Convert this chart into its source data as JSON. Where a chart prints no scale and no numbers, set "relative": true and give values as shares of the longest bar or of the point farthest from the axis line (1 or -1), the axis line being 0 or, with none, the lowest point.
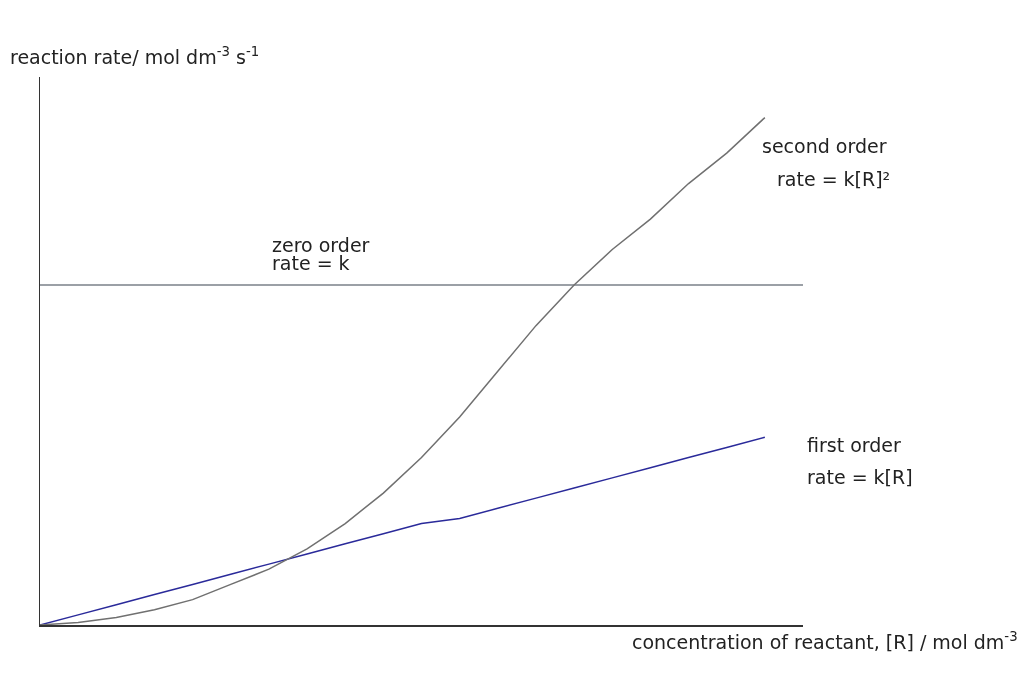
{
  "chart_data": {
    "type": "line",
    "relative": true,
    "xlabel": "concentration of reactant, [R] / mol dm$^{-3}$",
    "ylabel": "reaction rate/ mol dm$^{-3}$ s$^{-1}$",
    "categories": [
      null,
      null,
      null,
      null,
      null,
      null,
      null,
      null,
      null,
      null,
      null,
      null,
      null,
      null,
      null,
      null,
      null,
      null,
      null,
      null,
      null
    ],
    "series": [
      {
        "name": "zero order",
        "color": "#7a8088",
        "values": [
          0.67,
          0.67,
          0.67,
          0.67,
          0.67,
          0.67,
          0.67,
          0.67,
          0.67,
          0.67,
          0.67,
          0.67,
          0.67,
          0.67,
          0.67,
          0.67,
          0.67,
          0.67,
          0.67,
          0.67,
          0.67
        ]
      },
      {
        "name": "first order",
        "color": "#2a2a9a",
        "values": [
          0,
          0.02,
          0.04,
          0.06,
          0.08,
          0.1,
          0.12,
          0.14,
          0.16,
          0.18,
          0.2,
          0.21,
          0.23,
          0.25,
          0.27,
          0.29,
          0.31,
          0.33,
          0.35,
          0.37,
          null
        ]
      },
      {
        "name": "second order",
        "color": "#707070",
        "values": [
          0,
          0.005,
          0.015,
          0.03,
          0.05,
          0.08,
          0.11,
          0.15,
          0.2,
          0.26,
          0.33,
          0.41,
          0.5,
          0.59,
          0.67,
          0.74,
          0.8,
          0.87,
          0.93,
          1,
          null
        ]
      }
    ],
    "annotations": [
      "rate = k",
      "rate = k[R]",
      "rate = k[R]²"
    ],
    "tick_labels": false,
    "grid": false,
    "legend": false,
    "marker": "none",
    "line_style": "solid"
  }
}
